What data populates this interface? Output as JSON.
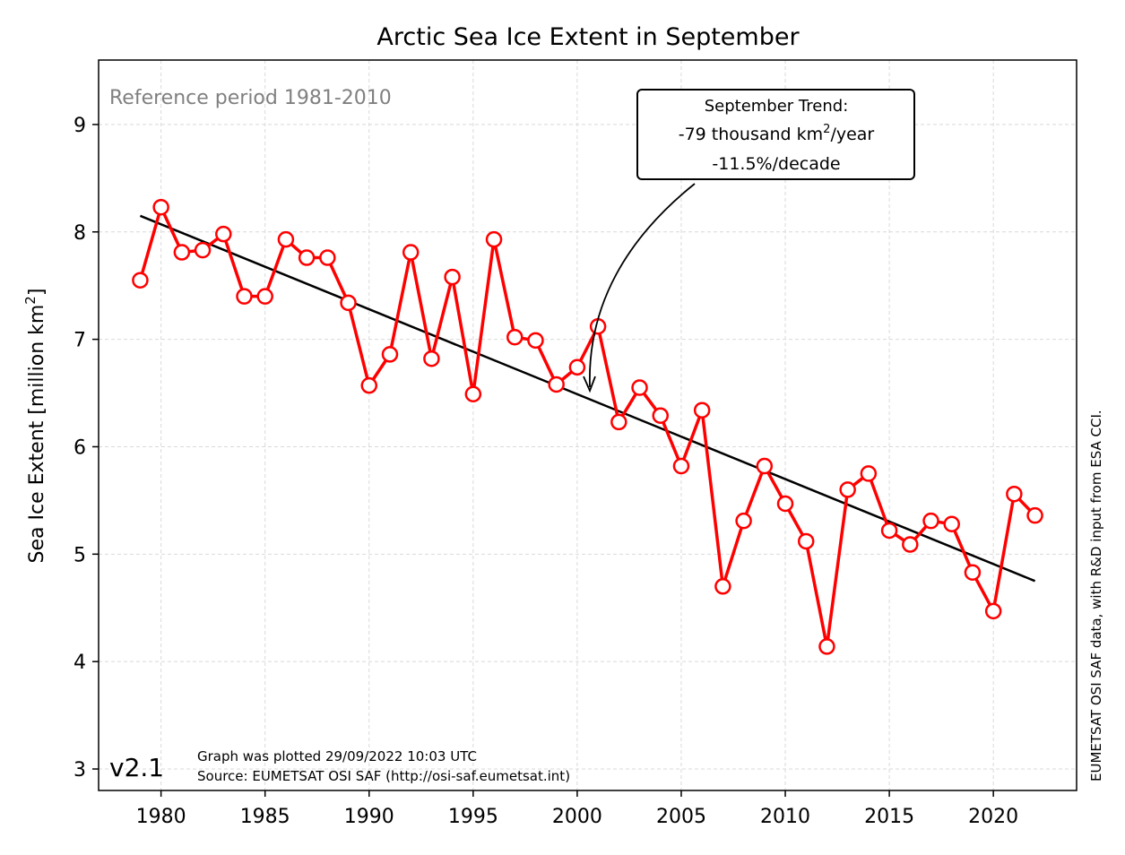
{
  "chart_data": {
    "type": "line",
    "title": "Arctic Sea Ice Extent in September",
    "ylabel": "Sea Ice Extent [million km²]",
    "ylabel_main": "Sea Ice Extent [million km",
    "ylabel_sup": "2",
    "ylabel_end": "]",
    "xlabel": "",
    "xlim": [
      1977,
      2024
    ],
    "ylim": [
      2.8,
      9.6
    ],
    "xticks": [
      1980,
      1985,
      1990,
      1995,
      2000,
      2005,
      2010,
      2015,
      2020
    ],
    "yticks": [
      3,
      4,
      5,
      6,
      7,
      8,
      9
    ],
    "grid": true,
    "series": [
      {
        "color": "#ff0000",
        "x": [
          1979,
          1980,
          1981,
          1982,
          1983,
          1984,
          1985,
          1986,
          1987,
          1988,
          1989,
          1990,
          1991,
          1992,
          1993,
          1994,
          1995,
          1996,
          1997,
          1998,
          1999,
          2000,
          2001,
          2002,
          2003,
          2004,
          2005,
          2006,
          2007,
          2008,
          2009,
          2010,
          2011,
          2012,
          2013,
          2014,
          2015,
          2016,
          2017,
          2018,
          2019,
          2020,
          2021,
          2022
        ],
        "values": [
          7.55,
          8.23,
          7.81,
          7.83,
          7.98,
          7.4,
          7.4,
          7.93,
          7.76,
          7.76,
          7.34,
          6.57,
          6.86,
          7.81,
          6.82,
          7.58,
          6.49,
          7.93,
          7.02,
          6.99,
          6.58,
          6.74,
          7.12,
          6.23,
          6.55,
          6.29,
          5.82,
          6.34,
          4.7,
          5.31,
          5.82,
          5.47,
          5.12,
          4.14,
          5.6,
          5.75,
          5.22,
          5.09,
          5.31,
          5.28,
          4.83,
          4.47,
          5.56,
          5.36
        ]
      },
      {
        "color": "#000000",
        "x": [
          1979,
          2022
        ],
        "values": [
          8.15,
          4.75
        ]
      }
    ],
    "annotations": {
      "reference": "Reference period 1981-2010",
      "trend_line1": "September Trend:",
      "trend_line2_pre": "-79 thousand km",
      "trend_line2_sup": "2",
      "trend_line2_post": "/year",
      "trend_line3": "-11.5%/decade",
      "version": "v2.1",
      "plotted": "Graph was plotted 29/09/2022 10:03 UTC",
      "source": "Source: EUMETSAT OSI SAF (http://osi-saf.eumetsat.int)",
      "credit": "EUMETSAT OSI SAF data, with R&D input from ESA CCI."
    }
  }
}
